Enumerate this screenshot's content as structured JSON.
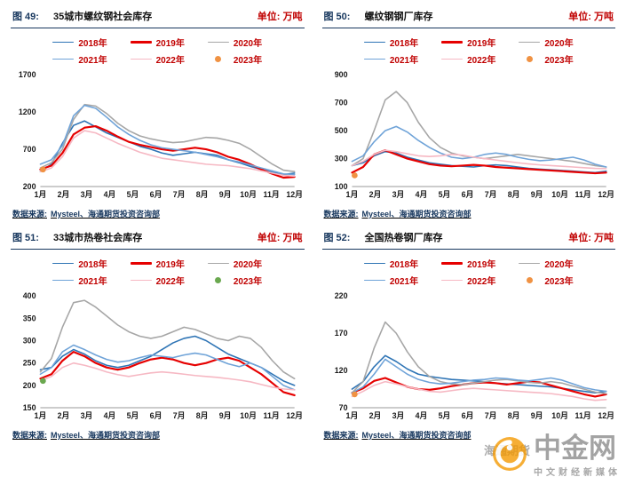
{
  "chart_data": [
    {
      "type": "line",
      "fig_label": "图 49:",
      "title": "35城市螺纹钢社会库存",
      "unit_label": "单位: 万吨",
      "source_prefix": "数据来源:",
      "source_text": "Mysteel、海通期货投资咨询部",
      "x_labels": [
        "1月",
        "2月",
        "3月",
        "4月",
        "5月",
        "6月",
        "7月",
        "8月",
        "9月",
        "10月",
        "11月",
        "12月"
      ],
      "ylim": [
        200,
        1700
      ],
      "yticks": [
        200,
        700,
        1200,
        1700
      ],
      "grid": false,
      "legend_position": "top",
      "series": [
        {
          "name": "2018年",
          "color": "#2e74b5",
          "width": 1.6,
          "values": [
            400,
            500,
            780,
            1020,
            1080,
            1000,
            920,
            860,
            800,
            740,
            700,
            650,
            620,
            640,
            660,
            640,
            620,
            560,
            520,
            470,
            430,
            390,
            360,
            380
          ]
        },
        {
          "name": "2019年",
          "color": "#e60000",
          "width": 2.2,
          "values": [
            430,
            480,
            650,
            900,
            990,
            1010,
            950,
            870,
            800,
            760,
            730,
            700,
            680,
            700,
            720,
            700,
            660,
            600,
            560,
            500,
            430,
            370,
            320,
            330
          ]
        },
        {
          "name": "2020年",
          "color": "#a6a6a6",
          "width": 1.6,
          "values": [
            450,
            520,
            700,
            1100,
            1300,
            1280,
            1180,
            1050,
            950,
            880,
            840,
            810,
            790,
            800,
            830,
            860,
            850,
            820,
            780,
            700,
            600,
            500,
            420,
            400
          ]
        },
        {
          "name": "2021年",
          "color": "#6fa3d8",
          "width": 1.6,
          "values": [
            500,
            560,
            750,
            1150,
            1290,
            1250,
            1130,
            1000,
            900,
            820,
            760,
            720,
            700,
            680,
            660,
            630,
            600,
            560,
            530,
            490,
            450,
            410,
            370,
            360
          ]
        },
        {
          "name": "2022年",
          "color": "#f6b8c3",
          "width": 1.6,
          "values": [
            400,
            450,
            600,
            850,
            950,
            920,
            850,
            780,
            720,
            660,
            620,
            580,
            560,
            540,
            520,
            500,
            490,
            480,
            460,
            440,
            410,
            380,
            350,
            340
          ]
        },
        {
          "name": "2023年",
          "color": "#f09243",
          "marker_only": true,
          "values": [
            430
          ]
        }
      ]
    },
    {
      "type": "line",
      "fig_label": "图 50:",
      "title": "螺纹钢钢厂库存",
      "unit_label": "单位: 万吨",
      "source_prefix": "数据来源:",
      "source_text": "Mysteel、海通期货投资咨询部",
      "x_labels": [
        "1月",
        "2月",
        "3月",
        "4月",
        "5月",
        "6月",
        "7月",
        "8月",
        "9月",
        "10月",
        "11月",
        "12月"
      ],
      "ylim": [
        100,
        900
      ],
      "yticks": [
        100,
        300,
        500,
        700,
        900
      ],
      "grid": false,
      "legend_position": "top",
      "series": [
        {
          "name": "2018年",
          "color": "#2e74b5",
          "width": 1.6,
          "values": [
            250,
            270,
            320,
            350,
            340,
            310,
            290,
            270,
            260,
            250,
            245,
            240,
            250,
            255,
            250,
            240,
            230,
            225,
            220,
            215,
            210,
            205,
            200,
            210
          ]
        },
        {
          "name": "2019年",
          "color": "#e60000",
          "width": 2.2,
          "values": [
            200,
            240,
            330,
            360,
            330,
            300,
            280,
            260,
            250,
            245,
            250,
            255,
            250,
            240,
            235,
            230,
            225,
            220,
            215,
            210,
            205,
            200,
            195,
            200
          ]
        },
        {
          "name": "2020年",
          "color": "#a6a6a6",
          "width": 1.6,
          "values": [
            250,
            300,
            500,
            720,
            780,
            700,
            560,
            450,
            380,
            340,
            320,
            310,
            300,
            310,
            320,
            330,
            320,
            310,
            300,
            290,
            280,
            265,
            250,
            240
          ]
        },
        {
          "name": "2021年",
          "color": "#6fa3d8",
          "width": 1.6,
          "values": [
            280,
            320,
            420,
            500,
            530,
            490,
            430,
            380,
            340,
            310,
            300,
            310,
            330,
            340,
            330,
            310,
            295,
            285,
            290,
            300,
            310,
            290,
            260,
            240
          ]
        },
        {
          "name": "2022年",
          "color": "#f6b8c3",
          "width": 1.6,
          "values": [
            250,
            280,
            330,
            360,
            350,
            335,
            320,
            315,
            320,
            330,
            325,
            310,
            300,
            290,
            280,
            270,
            262,
            255,
            250,
            245,
            240,
            235,
            230,
            228
          ]
        },
        {
          "name": "2023年",
          "color": "#f09243",
          "marker_only": true,
          "values": [
            180
          ]
        }
      ]
    },
    {
      "type": "line",
      "fig_label": "图 51:",
      "title": "33城市热卷社会库存",
      "unit_label": "单位: 万吨",
      "source_prefix": "数据来源:",
      "source_text": "Mysteel、海通期货投资咨询部",
      "x_labels": [
        "1月",
        "2月",
        "3月",
        "4月",
        "5月",
        "6月",
        "7月",
        "8月",
        "9月",
        "10月",
        "11月",
        "12月"
      ],
      "ylim": [
        150,
        400
      ],
      "yticks": [
        150,
        200,
        250,
        300,
        350,
        400
      ],
      "grid": false,
      "legend_position": "top",
      "series": [
        {
          "name": "2018年",
          "color": "#2e74b5",
          "width": 1.6,
          "values": [
            235,
            240,
            265,
            280,
            270,
            255,
            245,
            240,
            245,
            255,
            265,
            280,
            295,
            305,
            310,
            300,
            285,
            270,
            260,
            250,
            240,
            225,
            210,
            200
          ]
        },
        {
          "name": "2019年",
          "color": "#e60000",
          "width": 2.2,
          "values": [
            215,
            225,
            255,
            275,
            265,
            250,
            240,
            235,
            240,
            250,
            258,
            262,
            258,
            250,
            245,
            250,
            258,
            262,
            255,
            240,
            225,
            205,
            185,
            178
          ]
        },
        {
          "name": "2020年",
          "color": "#a6a6a6",
          "width": 1.6,
          "values": [
            230,
            260,
            330,
            385,
            390,
            375,
            355,
            335,
            320,
            310,
            305,
            310,
            320,
            330,
            325,
            315,
            305,
            300,
            310,
            305,
            285,
            255,
            230,
            215
          ]
        },
        {
          "name": "2021年",
          "color": "#6fa3d8",
          "width": 1.6,
          "values": [
            225,
            240,
            275,
            290,
            280,
            268,
            258,
            252,
            255,
            262,
            268,
            265,
            262,
            268,
            272,
            268,
            258,
            248,
            242,
            250,
            240,
            220,
            200,
            190
          ]
        },
        {
          "name": "2022年",
          "color": "#f6b8c3",
          "width": 1.6,
          "values": [
            210,
            220,
            240,
            250,
            245,
            238,
            230,
            224,
            220,
            224,
            228,
            230,
            228,
            225,
            222,
            220,
            218,
            215,
            212,
            208,
            202,
            196,
            192,
            190
          ]
        },
        {
          "name": "2023年",
          "color": "#6aa84f",
          "marker_only": true,
          "values": [
            210
          ]
        }
      ]
    },
    {
      "type": "line",
      "fig_label": "图 52:",
      "title": "全国热卷钢厂库存",
      "unit_label": "单位: 万吨",
      "source_prefix": "数据来源:",
      "source_text": "Mysteel、海通期货投资咨询部",
      "x_labels": [
        "1月",
        "2月",
        "3月",
        "4月",
        "5月",
        "6月",
        "7月",
        "8月",
        "9月",
        "10月",
        "11月",
        "12月"
      ],
      "ylim": [
        70,
        220
      ],
      "yticks": [
        70,
        120,
        170,
        220
      ],
      "grid": false,
      "legend_position": "top",
      "series": [
        {
          "name": "2018年",
          "color": "#2e74b5",
          "width": 1.6,
          "values": [
            95,
            105,
            125,
            140,
            132,
            122,
            115,
            112,
            110,
            108,
            107,
            106,
            105,
            103,
            102,
            101,
            100,
            99,
            98,
            96,
            94,
            92,
            90,
            92
          ]
        },
        {
          "name": "2019年",
          "color": "#e60000",
          "width": 2.2,
          "values": [
            90,
            96,
            106,
            110,
            104,
            98,
            95,
            94,
            96,
            99,
            101,
            103,
            104,
            103,
            101,
            103,
            105,
            104,
            100,
            96,
            92,
            88,
            85,
            88
          ]
        },
        {
          "name": "2020年",
          "color": "#a6a6a6",
          "width": 1.6,
          "values": [
            90,
            105,
            150,
            185,
            170,
            145,
            125,
            112,
            105,
            102,
            101,
            103,
            105,
            107,
            108,
            106,
            104,
            103,
            105,
            103,
            99,
            95,
            91,
            89
          ]
        },
        {
          "name": "2021年",
          "color": "#6fa3d8",
          "width": 1.6,
          "values": [
            90,
            98,
            115,
            135,
            125,
            115,
            108,
            104,
            102,
            103,
            105,
            107,
            108,
            110,
            109,
            107,
            106,
            108,
            110,
            107,
            102,
            97,
            94,
            92
          ]
        },
        {
          "name": "2022年",
          "color": "#f6b8c3",
          "width": 1.6,
          "values": [
            85,
            92,
            100,
            105,
            102,
            98,
            95,
            92,
            91,
            93,
            95,
            96,
            95,
            94,
            93,
            92,
            91,
            90,
            89,
            87,
            85,
            82,
            80,
            81
          ]
        },
        {
          "name": "2023年",
          "color": "#f09243",
          "marker_only": true,
          "values": [
            88
          ]
        }
      ]
    }
  ],
  "watermark": {
    "brand": "中金网",
    "tagline": "中文财经新媒体",
    "overlay": "海通期货",
    "logo_color": "#f39800"
  }
}
